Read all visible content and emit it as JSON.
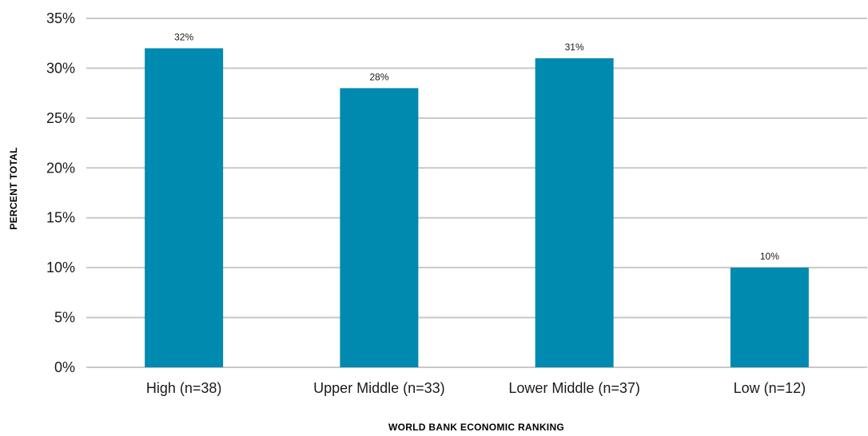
{
  "chart_data": {
    "type": "bar",
    "categories": [
      "High (n=38)",
      "Upper Middle (n=33)",
      "Lower Middle (n=37)",
      "Low (n=12)"
    ],
    "values": [
      32,
      28,
      31,
      10
    ],
    "data_labels": [
      "32%",
      "28%",
      "31%",
      "10%"
    ],
    "title": "",
    "xlabel": "WORLD BANK ECONOMIC RANKING",
    "ylabel": "PERCENT TOTAL",
    "ylim": [
      0,
      35
    ],
    "y_ticks": [
      0,
      5,
      10,
      15,
      20,
      25,
      30,
      35
    ],
    "y_tick_labels": [
      "0%",
      "5%",
      "10%",
      "15%",
      "20%",
      "25%",
      "30%",
      "35%"
    ],
    "grid": true,
    "legend": "none",
    "bar_color": "#008ab0",
    "grid_color": "#c8c8c8"
  }
}
